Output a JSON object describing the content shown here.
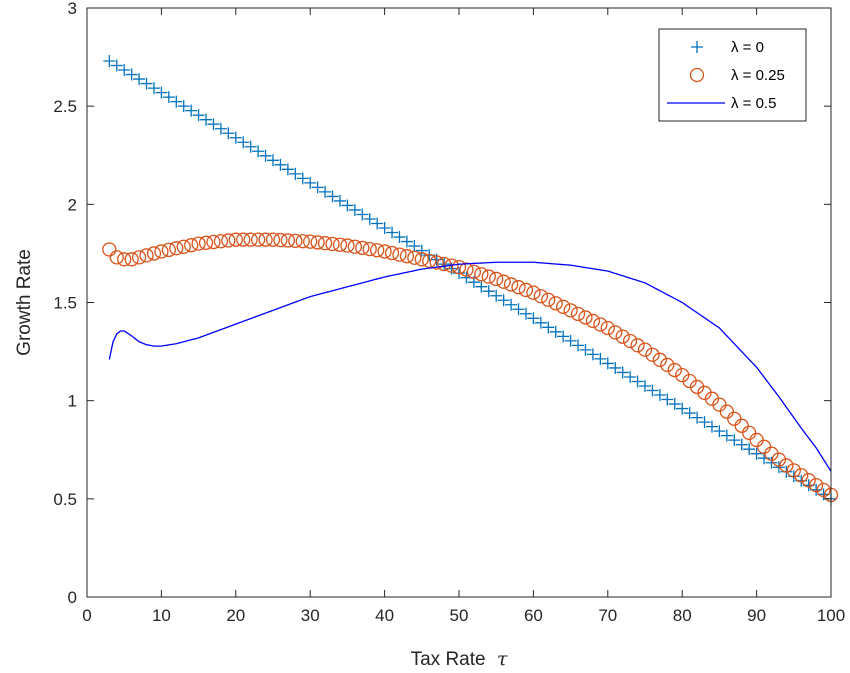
{
  "chart_data": {
    "type": "line",
    "title": "",
    "xlabel": "Tax Rate",
    "xlabel_symbol": "τ",
    "ylabel": "Growth Rate",
    "xlim": [
      0,
      100
    ],
    "ylim": [
      0,
      3
    ],
    "xticks": [
      0,
      10,
      20,
      30,
      40,
      50,
      60,
      70,
      80,
      90,
      100
    ],
    "yticks": [
      0,
      0.5,
      1,
      1.5,
      2,
      2.5,
      3
    ],
    "grid": false,
    "legend_position": "top-right",
    "x": [
      3,
      4,
      5,
      6,
      7,
      8,
      9,
      10,
      12,
      15,
      20,
      25,
      30,
      35,
      40,
      45,
      50,
      55,
      60,
      65,
      70,
      75,
      80,
      85,
      90,
      92,
      94,
      96,
      98,
      100
    ],
    "series": [
      {
        "name": "λ = 0",
        "style": "plus-markers",
        "color": "#0072BD",
        "y_start": 2.73,
        "y_end": 0.5,
        "marker_step": 1
      },
      {
        "name": "λ = 0.25",
        "style": "circle-markers",
        "color": "#D95319",
        "x": [
          3,
          4,
          5,
          6,
          7,
          8,
          10,
          15,
          20,
          25,
          30,
          35,
          40,
          45,
          50,
          55,
          60,
          65,
          70,
          75,
          80,
          85,
          90,
          92,
          94,
          96,
          98,
          100
        ],
        "values": [
          1.77,
          1.73,
          1.72,
          1.72,
          1.73,
          1.74,
          1.76,
          1.8,
          1.82,
          1.82,
          1.81,
          1.79,
          1.76,
          1.72,
          1.68,
          1.62,
          1.55,
          1.46,
          1.37,
          1.26,
          1.13,
          0.98,
          0.8,
          0.73,
          0.67,
          0.62,
          0.57,
          0.52
        ],
        "marker_step": 1
      },
      {
        "name": "λ = 0.5",
        "style": "line",
        "color": "#0000FF",
        "x": [
          3,
          3.5,
          4,
          4.5,
          5,
          6,
          7,
          8,
          9,
          10,
          12,
          15,
          20,
          25,
          30,
          35,
          40,
          45,
          50,
          55,
          60,
          65,
          70,
          75,
          80,
          85,
          90,
          93,
          96,
          98,
          100
        ],
        "values": [
          1.21,
          1.3,
          1.34,
          1.355,
          1.355,
          1.33,
          1.3,
          1.285,
          1.278,
          1.278,
          1.29,
          1.32,
          1.39,
          1.46,
          1.53,
          1.58,
          1.63,
          1.67,
          1.695,
          1.705,
          1.705,
          1.69,
          1.66,
          1.6,
          1.5,
          1.37,
          1.17,
          1.02,
          0.86,
          0.76,
          0.64
        ]
      }
    ]
  }
}
